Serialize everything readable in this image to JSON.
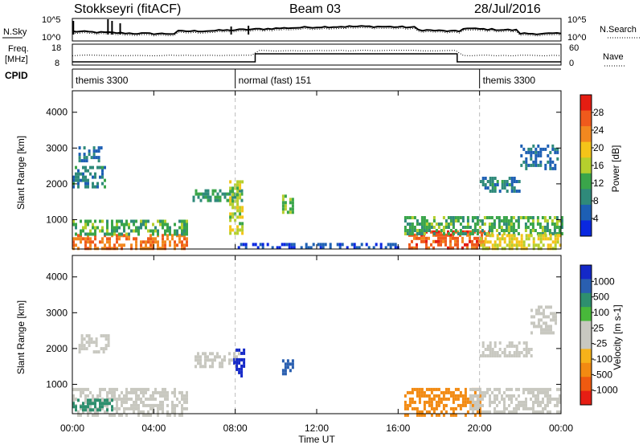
{
  "header": {
    "radar": "Stokkseyri (fitACF)",
    "beam": "Beam 03",
    "date": "28/Jul/2016"
  },
  "noise_panel": {
    "left_label": "N.Sky",
    "left_ticks": [
      "10^5",
      "10^0"
    ],
    "right_label": "N.Search",
    "right_ticks": [
      "10^5",
      "10^0"
    ]
  },
  "freq_panel": {
    "left_label_line1": "Freq.",
    "left_label_line2": "[MHz]",
    "left_ticks": [
      "18",
      "8"
    ],
    "right_label": "Nave",
    "right_ticks": [
      "60",
      "0"
    ]
  },
  "cpid": {
    "label": "CPID",
    "segments": [
      {
        "name": "themis 3300",
        "start_h": 0,
        "end_h": 8
      },
      {
        "name": "normal (fast) 151",
        "start_h": 8,
        "end_h": 20
      },
      {
        "name": "themis 3300",
        "start_h": 20,
        "end_h": 24
      }
    ]
  },
  "power_panel": {
    "ylabel": "Slant Range [km]",
    "yticks": [
      "4000",
      "3000",
      "2000",
      "1000"
    ],
    "colorbar_label": "Power [dB]",
    "colorbar_ticks": [
      "28",
      "24",
      "20",
      "16",
      "12",
      "8",
      "4"
    ],
    "colors": [
      "#0a28e0",
      "#1d5fb4",
      "#2f8a7a",
      "#3aa54a",
      "#b5cf2d",
      "#f4c419",
      "#f2881f",
      "#ef5a1c",
      "#e51d12"
    ]
  },
  "velocity_panel": {
    "ylabel": "Slant Range [km]",
    "yticks": [
      "4000",
      "3000",
      "2000",
      "1000"
    ],
    "colorbar_label": "Velocity [m s-1]",
    "colorbar_ticks": [
      "1000",
      "500",
      "100",
      "25",
      "-25",
      "-100",
      "-500",
      "-1000"
    ],
    "colors": [
      "#1428c8",
      "#2a5fb0",
      "#2e8f6e",
      "#48b83a",
      "#c8c8c0",
      "#c8c8c0",
      "#f6b21a",
      "#f28a12",
      "#ee5a10",
      "#e61e14"
    ],
    "ground_scatter": "#c8c8c0"
  },
  "time_axis": {
    "label": "Time UT",
    "ticks": [
      "00:00",
      "04:00",
      "08:00",
      "12:00",
      "16:00",
      "20:00",
      "00:00"
    ]
  },
  "chart_data": {
    "type": "heatmap",
    "title": "Stokkseyri (fitACF)",
    "subtitle": "Beam 03",
    "date": "28/Jul/2016",
    "x": {
      "label": "Time UT",
      "range_h": [
        0,
        24
      ],
      "ticks": [
        "00:00",
        "04:00",
        "08:00",
        "12:00",
        "16:00",
        "20:00",
        "00:00"
      ]
    },
    "y": {
      "label": "Slant Range [km]",
      "range_km": [
        180,
        4600
      ],
      "ticks": [
        1000,
        2000,
        3000,
        4000
      ]
    },
    "power_regions": [
      {
        "t0": 0.0,
        "t1": 5.6,
        "r0": 180,
        "r1": 600,
        "level_db": 24
      },
      {
        "t0": 0.0,
        "t1": 5.6,
        "r0": 600,
        "r1": 1000,
        "level_db": 12
      },
      {
        "t0": 0.0,
        "t1": 1.6,
        "r0": 1900,
        "r1": 2500,
        "level_db": 8
      },
      {
        "t0": 0.3,
        "t1": 1.4,
        "r0": 2650,
        "r1": 3050,
        "level_db": 6
      },
      {
        "t0": 5.9,
        "t1": 8.3,
        "r0": 1500,
        "r1": 1850,
        "level_db": 10
      },
      {
        "t0": 7.7,
        "t1": 8.4,
        "r0": 600,
        "r1": 2100,
        "level_db": 16
      },
      {
        "t0": 10.3,
        "t1": 10.8,
        "r0": 1250,
        "r1": 1700,
        "level_db": 14
      },
      {
        "t0": 8.0,
        "t1": 16.0,
        "r0": 180,
        "r1": 350,
        "level_db": 4
      },
      {
        "t0": 16.5,
        "t1": 20.5,
        "r0": 180,
        "r1": 700,
        "level_db": 26
      },
      {
        "t0": 16.3,
        "t1": 24.0,
        "r0": 600,
        "r1": 1100,
        "level_db": 12
      },
      {
        "t0": 20.0,
        "t1": 24.0,
        "r0": 180,
        "r1": 600,
        "level_db": 18
      },
      {
        "t0": 20.0,
        "t1": 22.0,
        "r0": 1800,
        "r1": 2200,
        "level_db": 8
      },
      {
        "t0": 22.0,
        "t1": 23.8,
        "r0": 2400,
        "r1": 3100,
        "level_db": 6
      }
    ],
    "velocity_regions": [
      {
        "t0": 0.0,
        "t1": 5.6,
        "r0": 180,
        "r1": 900,
        "velocity": 25,
        "kind": "ground"
      },
      {
        "t0": 0.0,
        "t1": 2.0,
        "r0": 300,
        "r1": 600,
        "velocity": 200,
        "kind": "ionospheric"
      },
      {
        "t0": 0.3,
        "t1": 1.8,
        "r0": 1950,
        "r1": 2400,
        "velocity": 0,
        "kind": "ground"
      },
      {
        "t0": 6.0,
        "t1": 8.3,
        "r0": 1500,
        "r1": 1900,
        "velocity": 0,
        "kind": "ground"
      },
      {
        "t0": 7.9,
        "t1": 8.4,
        "r0": 1200,
        "r1": 2000,
        "velocity": 800,
        "kind": "ionospheric"
      },
      {
        "t0": 10.3,
        "t1": 10.8,
        "r0": 1300,
        "r1": 1700,
        "velocity": 600,
        "kind": "ionospheric"
      },
      {
        "t0": 16.3,
        "t1": 20.0,
        "r0": 180,
        "r1": 900,
        "velocity": -300,
        "kind": "ionospheric"
      },
      {
        "t0": 19.5,
        "t1": 24.0,
        "r0": 200,
        "r1": 900,
        "velocity": 0,
        "kind": "ground"
      },
      {
        "t0": 20.0,
        "t1": 22.5,
        "r0": 1800,
        "r1": 2200,
        "velocity": 0,
        "kind": "ground"
      },
      {
        "t0": 22.5,
        "t1": 23.8,
        "r0": 2400,
        "r1": 3200,
        "velocity": 0,
        "kind": "ground"
      }
    ]
  }
}
